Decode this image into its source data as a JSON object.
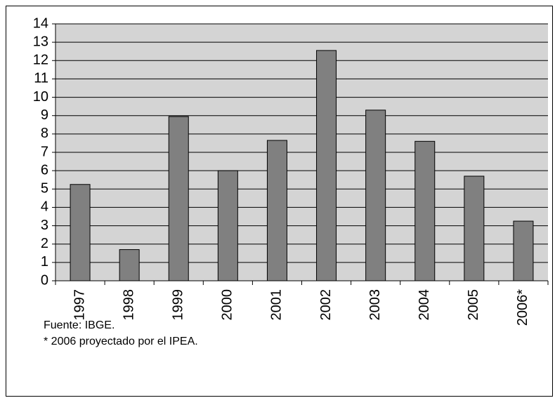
{
  "chart_data": {
    "type": "bar",
    "categories": [
      "1997",
      "1998",
      "1999",
      "2000",
      "2001",
      "2002",
      "2003",
      "2004",
      "2005",
      "2006*"
    ],
    "values": [
      5.25,
      1.7,
      8.95,
      6.0,
      7.65,
      12.55,
      9.3,
      7.6,
      5.7,
      3.25
    ],
    "color": "#808080",
    "ylim": [
      0,
      14
    ],
    "yticks": [
      0,
      1,
      2,
      3,
      4,
      5,
      6,
      7,
      8,
      9,
      10,
      11,
      12,
      13,
      14
    ],
    "grid": true,
    "notes": [
      "Fuente: IBGE.",
      "* 2006 proyectado por el IPEA."
    ]
  }
}
